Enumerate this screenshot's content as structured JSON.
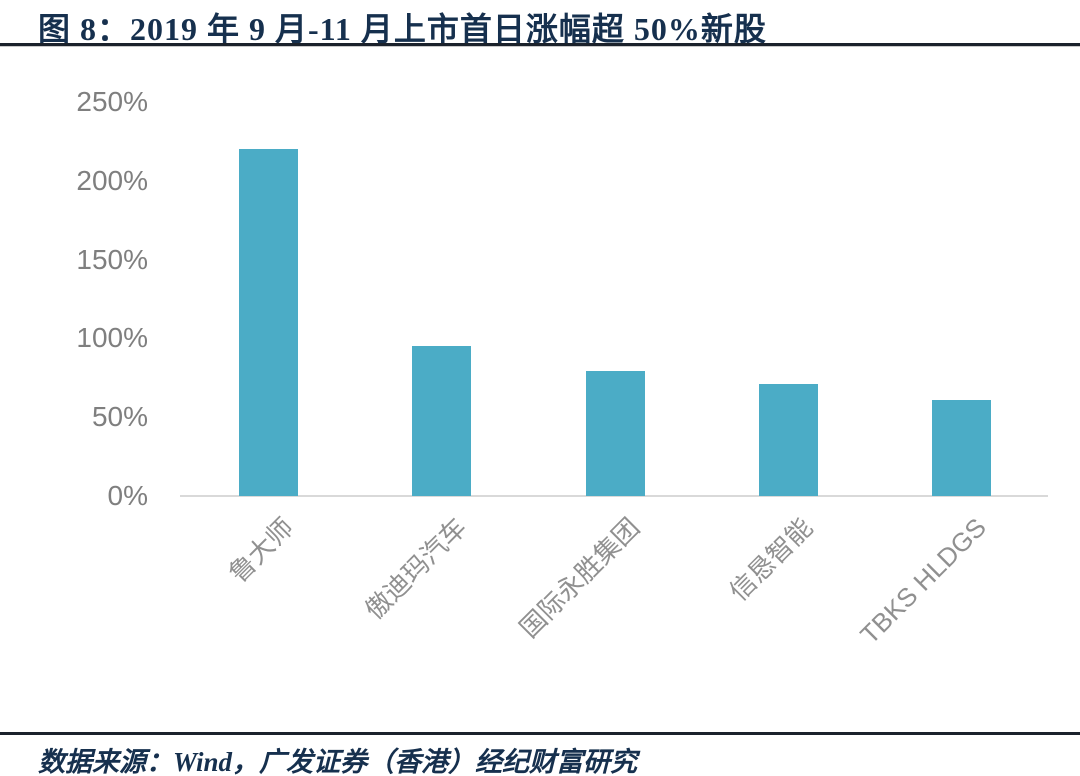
{
  "header": {
    "title": "图 8：2019 年 9 月-11 月上市首日涨幅超 50%新股"
  },
  "footer": {
    "source": "数据来源：Wind，广发证券（香港）经纪财富研究"
  },
  "colors": {
    "bar": "#4BACC6",
    "title_text": "#16304e",
    "divider_rule": "#1b222c",
    "axis_baseline": "#d9d9d9",
    "ytick_text": "#7f7f7f",
    "xtick_text": "#909090"
  },
  "chart_data": {
    "type": "bar",
    "title": "2019 年 9 月-11 月上市首日涨幅超 50%新股",
    "categories": [
      "鲁大师",
      "傲迪玛汽车",
      "国际永胜集团",
      "信恳智能",
      "TBKS HLDGS"
    ],
    "values": [
      220,
      95,
      79,
      71,
      61
    ],
    "unit": "%",
    "xlabel": "",
    "ylabel": "",
    "ylim": [
      0,
      250
    ],
    "ytick_labels": [
      "0%",
      "50%",
      "100%",
      "150%",
      "200%",
      "250%"
    ],
    "bar_color": "#4BACC6",
    "grid": false,
    "legend": false,
    "x_labels_rotated_degrees": 45
  }
}
